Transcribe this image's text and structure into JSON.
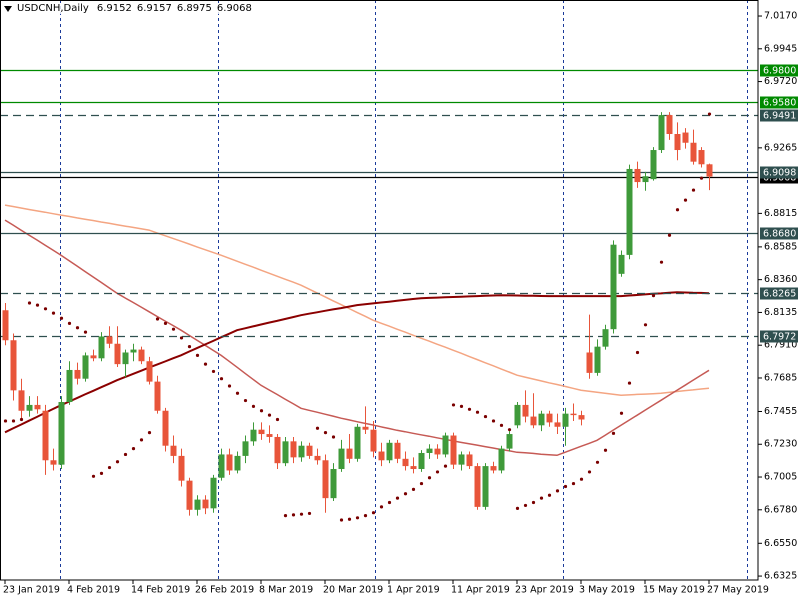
{
  "chart_data": {
    "type": "candlestick",
    "header": {
      "symbol": "USDCNH,Daily",
      "ohlc": [
        "6.9152",
        "6.9157",
        "6.8975",
        "6.9068"
      ]
    },
    "categories": [
      "23 Jan 2019",
      null,
      null,
      null,
      null,
      null,
      null,
      null,
      "4 Feb 2019",
      null,
      null,
      null,
      null,
      null,
      null,
      null,
      "14 Feb 2019",
      null,
      null,
      null,
      null,
      null,
      null,
      null,
      "26 Feb 2019",
      null,
      null,
      null,
      null,
      null,
      null,
      null,
      "8 Mar 2019",
      null,
      null,
      null,
      null,
      null,
      null,
      null,
      "20 Mar 2019",
      null,
      null,
      null,
      null,
      null,
      null,
      null,
      "1 Apr 2019",
      null,
      null,
      null,
      null,
      null,
      null,
      null,
      "11 Apr 2019",
      null,
      null,
      null,
      null,
      null,
      null,
      null,
      "23 Apr 2019",
      null,
      null,
      null,
      null,
      null,
      null,
      null,
      "3 May 2019",
      null,
      null,
      null,
      null,
      null,
      null,
      null,
      "15 May 2019",
      null,
      null,
      null,
      null,
      null,
      null,
      null,
      "27 May 2019"
    ],
    "up_color": "#3f9a3a",
    "down_color": "#e8553a",
    "candles": [
      [
        6.815,
        6.82,
        6.791,
        6.7944
      ],
      [
        6.7944,
        6.799,
        6.753,
        6.76
      ],
      [
        6.76,
        6.768,
        6.74,
        6.746
      ],
      [
        6.746,
        6.756,
        6.742,
        6.75
      ],
      [
        6.75,
        6.756,
        6.744,
        6.747
      ],
      [
        6.746,
        6.75,
        6.702,
        6.712
      ],
      [
        6.712,
        6.72,
        6.705,
        6.709
      ],
      [
        6.709,
        6.756,
        6.706,
        6.752
      ],
      [
        6.752,
        6.78,
        6.75,
        6.774
      ],
      [
        6.774,
        6.779,
        6.764,
        6.768
      ],
      [
        6.768,
        6.786,
        6.766,
        6.784
      ],
      [
        6.784,
        6.788,
        6.78,
        6.782
      ],
      [
        6.782,
        6.8,
        6.78,
        6.797
      ],
      [
        6.797,
        6.804,
        6.789,
        6.792
      ],
      [
        6.792,
        6.804,
        6.776,
        6.778
      ],
      [
        6.778,
        6.788,
        6.769,
        6.786
      ],
      [
        6.786,
        6.792,
        6.78,
        6.788
      ],
      [
        6.788,
        6.79,
        6.778,
        6.78
      ],
      [
        6.78,
        6.783,
        6.764,
        6.766
      ],
      [
        6.766,
        6.77,
        6.744,
        6.746
      ],
      [
        6.746,
        6.748,
        6.718,
        6.722
      ],
      [
        6.722,
        6.729,
        6.71,
        6.715
      ],
      [
        6.715,
        6.72,
        6.694,
        6.698
      ],
      [
        6.698,
        6.7,
        6.674,
        6.678
      ],
      [
        6.678,
        6.688,
        6.674,
        6.685
      ],
      [
        6.685,
        6.688,
        6.675,
        6.679
      ],
      [
        6.679,
        6.702,
        6.676,
        6.7
      ],
      [
        6.7,
        6.72,
        6.698,
        6.716
      ],
      [
        6.716,
        6.72,
        6.702,
        6.705
      ],
      [
        6.705,
        6.718,
        6.703,
        6.715
      ],
      [
        6.715,
        6.729,
        6.71,
        6.725
      ],
      [
        6.725,
        6.738,
        6.722,
        6.733
      ],
      [
        6.733,
        6.738,
        6.726,
        6.73
      ],
      [
        6.73,
        6.736,
        6.724,
        6.728
      ],
      [
        6.728,
        6.73,
        6.706,
        6.71
      ],
      [
        6.71,
        6.728,
        6.708,
        6.725
      ],
      [
        6.725,
        6.728,
        6.71,
        6.714
      ],
      [
        6.714,
        6.725,
        6.711,
        6.722
      ],
      [
        6.722,
        6.724,
        6.713,
        6.715
      ],
      [
        6.715,
        6.72,
        6.709,
        6.712
      ],
      [
        6.712,
        6.716,
        6.676,
        6.686
      ],
      [
        6.686,
        6.71,
        6.684,
        6.706
      ],
      [
        6.706,
        6.726,
        6.704,
        6.72
      ],
      [
        6.72,
        6.73,
        6.71,
        6.713
      ],
      [
        6.713,
        6.737,
        6.711,
        6.735
      ],
      [
        6.735,
        6.749,
        6.73,
        6.733
      ],
      [
        6.733,
        6.739,
        6.714,
        6.718
      ],
      [
        6.718,
        6.724,
        6.708,
        6.712
      ],
      [
        6.712,
        6.726,
        6.71,
        6.724
      ],
      [
        6.724,
        6.726,
        6.71,
        6.713
      ],
      [
        6.713,
        6.718,
        6.705,
        6.708
      ],
      [
        6.708,
        6.714,
        6.703,
        6.706
      ],
      [
        6.706,
        6.719,
        6.704,
        6.717
      ],
      [
        6.717,
        6.723,
        6.713,
        6.72
      ],
      [
        6.72,
        6.723,
        6.713,
        6.716
      ],
      [
        6.716,
        6.731,
        6.714,
        6.729
      ],
      [
        6.729,
        6.731,
        6.706,
        6.709
      ],
      [
        6.709,
        6.718,
        6.705,
        6.716
      ],
      [
        6.716,
        6.718,
        6.706,
        6.708
      ],
      [
        6.708,
        6.71,
        6.678,
        6.68
      ],
      [
        6.68,
        6.71,
        6.678,
        6.708
      ],
      [
        6.708,
        6.711,
        6.703,
        6.705
      ],
      [
        6.705,
        6.722,
        6.703,
        6.72
      ],
      [
        6.72,
        6.732,
        6.718,
        6.73
      ],
      [
        6.736,
        6.752,
        6.734,
        6.75
      ],
      [
        6.75,
        6.76,
        6.738,
        6.742
      ],
      [
        6.742,
        6.758,
        6.734,
        6.736
      ],
      [
        6.736,
        6.746,
        6.732,
        6.744
      ],
      [
        6.744,
        6.746,
        6.735,
        6.738
      ],
      [
        6.738,
        6.744,
        6.73,
        6.735
      ],
      [
        6.735,
        6.748,
        6.722,
        6.744
      ],
      [
        6.744,
        6.751,
        6.739,
        6.743
      ],
      [
        6.743,
        6.746,
        6.736,
        6.74
      ],
      [
        6.786,
        6.812,
        6.768,
        6.772
      ],
      [
        6.772,
        6.795,
        6.77,
        6.79
      ],
      [
        6.79,
        6.805,
        6.788,
        6.802
      ],
      [
        6.802,
        6.863,
        6.799,
        6.86
      ],
      [
        6.84,
        6.856,
        6.838,
        6.853
      ],
      [
        6.853,
        6.915,
        6.85,
        6.912
      ],
      [
        6.912,
        6.917,
        6.899,
        6.903
      ],
      [
        6.903,
        6.91,
        6.897,
        6.907
      ],
      [
        6.905,
        6.927,
        6.904,
        6.925
      ],
      [
        6.925,
        6.951,
        6.923,
        6.949
      ],
      [
        6.949,
        6.951,
        6.932,
        6.936
      ],
      [
        6.936,
        6.944,
        6.918,
        6.925
      ],
      [
        6.937,
        6.94,
        6.926,
        6.93
      ],
      [
        6.93,
        6.939,
        6.915,
        6.917
      ],
      [
        6.925,
        6.927,
        6.913,
        6.9152
      ],
      [
        6.9152,
        6.9157,
        6.8975,
        6.9068
      ]
    ],
    "series": [
      {
        "color": "#f4a582",
        "values": [
          6.8872,
          6.8862,
          6.8852,
          6.8842,
          6.8832,
          6.8823,
          6.8813,
          6.8803,
          6.8794,
          6.8784,
          6.8775,
          6.8766,
          6.8756,
          6.8747,
          6.8737,
          6.8728,
          6.8719,
          6.8709,
          6.87,
          6.8681,
          6.8662,
          6.8643,
          6.8624,
          6.8605,
          6.8585,
          6.8566,
          6.8547,
          6.8528,
          6.8507,
          6.8487,
          6.8466,
          6.8446,
          6.8425,
          6.8404,
          6.8384,
          6.8363,
          6.8343,
          6.8322,
          6.8295,
          6.8269,
          6.8242,
          6.8215,
          6.8189,
          6.8162,
          6.8135,
          6.8109,
          6.8082,
          6.8061,
          6.8041,
          6.802,
          6.8,
          6.7979,
          6.7958,
          6.7938,
          6.7917,
          6.7897,
          6.7876,
          6.7855,
          6.7833,
          6.7812,
          6.779,
          6.7769,
          6.7747,
          6.7726,
          6.7704,
          6.7691,
          6.7678,
          6.7665,
          6.7652,
          6.764,
          6.7627,
          6.7614,
          6.7601,
          6.7594,
          6.7587,
          6.758,
          6.7573,
          6.7566,
          6.7569,
          6.7572,
          6.7574,
          6.7577,
          6.758,
          6.7586,
          6.7592,
          6.7598,
          6.7603,
          6.7609,
          6.7615
        ]
      },
      {
        "color": "#c65a55",
        "values": [
          6.8769,
          6.8735,
          6.87,
          6.8666,
          6.8632,
          6.8597,
          6.8563,
          6.8528,
          6.8491,
          6.8454,
          6.8416,
          6.8379,
          6.8342,
          6.8305,
          6.8267,
          6.8235,
          6.8204,
          6.8172,
          6.814,
          6.8108,
          6.8076,
          6.8045,
          6.8013,
          6.7979,
          6.7944,
          6.791,
          6.7876,
          6.7841,
          6.78,
          6.7759,
          6.7717,
          6.7676,
          6.7635,
          6.7603,
          6.7572,
          6.754,
          6.7509,
          6.7477,
          6.7463,
          6.745,
          6.7436,
          6.7423,
          6.7409,
          6.7397,
          6.7385,
          6.7373,
          6.7362,
          6.735,
          6.7338,
          6.7326,
          6.7316,
          6.7305,
          6.7295,
          6.7285,
          6.7274,
          6.7264,
          6.7253,
          6.7243,
          6.7233,
          6.7224,
          6.7214,
          6.7204,
          6.7194,
          6.7185,
          6.7175,
          6.7171,
          6.7167,
          6.7162,
          6.7158,
          6.7154,
          6.7175,
          6.7195,
          6.7216,
          6.7236,
          6.7257,
          6.7291,
          6.7326,
          6.736,
          6.7395,
          6.7429,
          6.7464,
          6.7498,
          6.7532,
          6.7567,
          6.7601,
          6.7635,
          6.767,
          6.7704,
          6.7738
        ]
      },
      {
        "color": "#8b0000",
        "values": [
          6.7312,
          6.7339,
          6.7365,
          6.7392,
          6.7418,
          6.7445,
          6.7472,
          6.7498,
          6.7523,
          6.7547,
          6.7572,
          6.7596,
          6.7621,
          6.7645,
          6.767,
          6.7691,
          6.7713,
          6.7734,
          6.7756,
          6.7777,
          6.7798,
          6.782,
          6.7841,
          6.7866,
          6.789,
          6.7915,
          6.7939,
          6.7964,
          6.7988,
          6.8013,
          6.8026,
          6.8039,
          6.8052,
          6.8065,
          6.8077,
          6.809,
          6.8103,
          6.8116,
          6.8126,
          6.8136,
          6.8146,
          6.8156,
          6.8165,
          6.8175,
          6.8185,
          6.8191,
          6.8197,
          6.8203,
          6.8209,
          6.8215,
          6.8221,
          6.8227,
          6.8233,
          6.8235,
          6.8237,
          6.8239,
          6.8241,
          6.8243,
          6.8245,
          6.8247,
          6.8249,
          6.8251,
          6.8253,
          6.8252,
          6.8251,
          6.825,
          6.8249,
          6.8248,
          6.8247,
          6.8247,
          6.8247,
          6.8247,
          6.8247,
          6.8247,
          6.8247,
          6.8247,
          6.8247,
          6.8247,
          6.8251,
          6.8255,
          6.8259,
          6.8263,
          6.8266,
          6.827,
          6.8274,
          6.8272,
          6.827,
          6.8269,
          6.8267
        ]
      }
    ],
    "sar": {
      "color": "#7a0000",
      "values": [
        6.739,
        6.739,
        6.74,
        6.82,
        6.8185,
        6.816,
        6.813,
        6.8095,
        6.806,
        6.803,
        6.8,
        6.701,
        6.703,
        6.707,
        6.711,
        6.716,
        6.72,
        6.726,
        6.731,
        6.809,
        6.806,
        6.802,
        6.796,
        6.79,
        6.784,
        6.778,
        6.773,
        6.768,
        6.763,
        6.758,
        6.753,
        6.749,
        6.746,
        6.743,
        6.74,
        6.674,
        6.6745,
        6.675,
        6.6755,
        6.734,
        6.731,
        6.728,
        6.671,
        6.6715,
        6.6725,
        6.674,
        6.676,
        6.68,
        6.683,
        6.686,
        6.689,
        6.692,
        6.696,
        6.7,
        6.704,
        6.708,
        6.75,
        6.749,
        6.747,
        6.745,
        6.742,
        6.739,
        6.736,
        6.733,
        6.679,
        6.681,
        6.683,
        6.686,
        6.688,
        6.691,
        6.694,
        6.696,
        6.699,
        6.704,
        6.7106,
        6.7189,
        6.7305,
        6.7443,
        6.765,
        6.786,
        6.805,
        6.825,
        6.848,
        6.8665,
        6.884,
        6.8906,
        6.8975,
        6.9057,
        6.9497
      ]
    },
    "ylim": [
      6.6298,
      7.028
    ],
    "yticks": [
      {
        "value": 7.017,
        "label": "7.0170"
      },
      6.9945,
      {
        "value": 6.972,
        "label": "6.9720"
      },
      6.9265,
      6.8815,
      6.8585,
      {
        "value": 6.836,
        "label": "6.8360"
      },
      6.8135,
      {
        "value": 6.791,
        "label": "6.7910"
      },
      6.7685,
      6.7455,
      {
        "value": 6.723,
        "label": "6.7230"
      },
      6.7005,
      {
        "value": 6.678,
        "label": "6.6780"
      },
      {
        "value": 6.655,
        "label": "6.6550"
      },
      6.6325
    ],
    "last_price": {
      "value": 6.9068,
      "label": "6.9068",
      "color": "#000000"
    },
    "levels": [
      {
        "value": 6.98,
        "label": "6.9800",
        "color": "#008a00",
        "style": "solid"
      },
      {
        "value": 6.958,
        "label": "6.9580",
        "color": "#008a00",
        "style": "solid"
      },
      {
        "value": 6.9491,
        "label": "6.9491",
        "color": "#2f4f4f",
        "style": "dashed"
      },
      {
        "value": 6.9098,
        "label": "6.9098",
        "color": "#2f4f4f",
        "style": "solid"
      },
      {
        "value": 6.868,
        "label": "6.8680",
        "color": "#2f4f4f",
        "style": "solid"
      },
      {
        "value": 6.8265,
        "label": "6.8265",
        "color": "#2f4f4f",
        "style": "dashed"
      },
      {
        "value": 6.7972,
        "label": "6.7972",
        "color": "#2f4f4f",
        "style": "dashed"
      }
    ]
  }
}
